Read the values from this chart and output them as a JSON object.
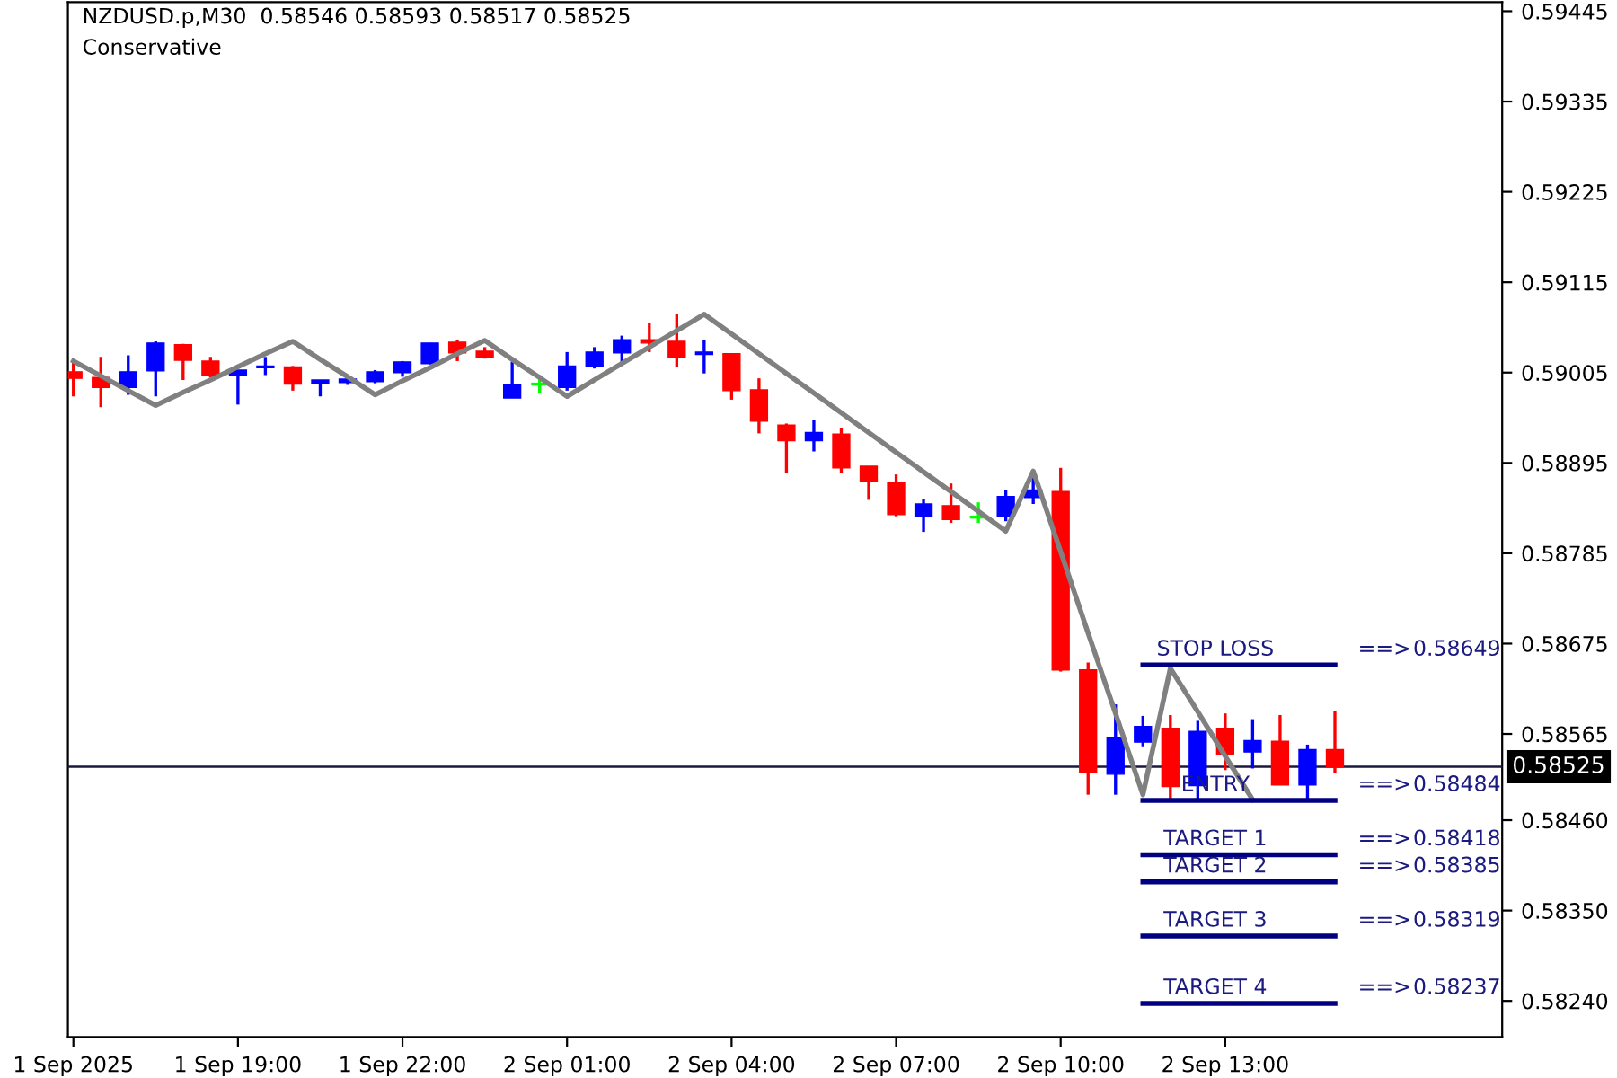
{
  "chart_data": {
    "type": "candlestick",
    "title": "NZDUSD.p,M30  0.58546 0.58593 0.58517 0.58525",
    "subtitle": "Conservative",
    "categories": [
      "1 Sep 2025",
      null,
      null,
      null,
      null,
      null,
      "1 Sep 19:00",
      null,
      null,
      null,
      null,
      null,
      "1 Sep 22:00",
      null,
      null,
      null,
      null,
      null,
      "2 Sep 01:00",
      null,
      null,
      null,
      null,
      null,
      "2 Sep 04:00",
      null,
      null,
      null,
      null,
      null,
      "2 Sep 07:00",
      null,
      null,
      null,
      null,
      null,
      "2 Sep 10:00",
      null,
      null,
      null,
      null,
      null,
      "2 Sep 13:00",
      null,
      null,
      null,
      null
    ],
    "ohlc": [
      [
        0.59006,
        0.59019,
        0.58976,
        0.58998
      ],
      [
        0.58999,
        0.59024,
        0.58963,
        0.58987
      ],
      [
        0.58987,
        0.59026,
        0.58978,
        0.59006
      ],
      [
        0.59007,
        0.59043,
        0.58976,
        0.59041
      ],
      [
        0.59039,
        0.5904,
        0.58996,
        0.5902
      ],
      [
        0.59019,
        0.59024,
        0.58999,
        0.59002
      ],
      [
        0.59002,
        0.59008,
        0.58966,
        0.59008
      ],
      [
        0.59011,
        0.59024,
        0.59002,
        0.59013
      ],
      [
        0.59012,
        0.59013,
        0.58983,
        0.58991
      ],
      [
        0.58992,
        0.58996,
        0.58976,
        0.58996
      ],
      [
        0.58993,
        0.58998,
        0.5899,
        0.58997
      ],
      [
        0.58994,
        0.59008,
        0.58992,
        0.59006
      ],
      [
        0.59005,
        0.59019,
        0.59,
        0.59018
      ],
      [
        0.59016,
        0.59041,
        0.59015,
        0.59041
      ],
      [
        0.59042,
        0.59045,
        0.59019,
        0.59029
      ],
      [
        0.59031,
        0.59036,
        0.59022,
        0.59024
      ],
      [
        0.58974,
        0.59018,
        0.58974,
        0.5899
      ],
      [
        0.58991,
        0.59002,
        0.5898,
        0.58991
      ],
      [
        0.58987,
        0.5903,
        0.58983,
        0.59013
      ],
      [
        0.59012,
        0.59036,
        0.5901,
        0.5903
      ],
      [
        0.59029,
        0.5905,
        0.59016,
        0.59045
      ],
      [
        0.59045,
        0.59065,
        0.5903,
        0.59041
      ],
      [
        0.59043,
        0.59076,
        0.59012,
        0.59024
      ],
      [
        0.59027,
        0.59045,
        0.59004,
        0.5903
      ],
      [
        0.59028,
        0.59028,
        0.58972,
        0.58983
      ],
      [
        0.58984,
        0.58998,
        0.58931,
        0.58946
      ],
      [
        0.58941,
        0.58943,
        0.58883,
        0.58922
      ],
      [
        0.58922,
        0.58947,
        0.58909,
        0.58932
      ],
      [
        0.5893,
        0.58938,
        0.58883,
        0.58889
      ],
      [
        0.58891,
        0.58891,
        0.5885,
        0.58872
      ],
      [
        0.58871,
        0.58881,
        0.5883,
        0.58832
      ],
      [
        0.5883,
        0.58851,
        0.58811,
        0.58845
      ],
      [
        0.58843,
        0.5887,
        0.58822,
        0.58826
      ],
      [
        0.58829,
        0.58847,
        0.58822,
        0.58829
      ],
      [
        0.5883,
        0.58862,
        0.58824,
        0.58854
      ],
      [
        0.58853,
        0.5888,
        0.58845,
        0.58862
      ],
      [
        0.5886,
        0.58889,
        0.58641,
        0.58643
      ],
      [
        0.58643,
        0.58652,
        0.58491,
        0.58518
      ],
      [
        0.58516,
        0.58601,
        0.58491,
        0.58561
      ],
      [
        0.58555,
        0.58587,
        0.5855,
        0.58574
      ],
      [
        0.58572,
        0.58588,
        0.58485,
        0.58501
      ],
      [
        0.58502,
        0.58581,
        0.58485,
        0.58568
      ],
      [
        0.58572,
        0.5859,
        0.58521,
        0.5854
      ],
      [
        0.58543,
        0.58583,
        0.58523,
        0.58557
      ],
      [
        0.58556,
        0.58588,
        0.58503,
        0.58503
      ],
      [
        0.58503,
        0.58552,
        0.58485,
        0.58546
      ],
      [
        0.58546,
        0.58593,
        0.58517,
        0.58525
      ]
    ],
    "colors": [
      "#ff0000",
      "#ff0000",
      "#0000ff",
      "#0000ff",
      "#ff0000",
      "#ff0000",
      "#0000ff",
      "#0000ff",
      "#ff0000",
      "#0000ff",
      "#0000ff",
      "#0000ff",
      "#0000ff",
      "#0000ff",
      "#ff0000",
      "#ff0000",
      "#0000ff",
      "#00ff00",
      "#0000ff",
      "#0000ff",
      "#0000ff",
      "#ff0000",
      "#ff0000",
      "#0000ff",
      "#ff0000",
      "#ff0000",
      "#ff0000",
      "#0000ff",
      "#ff0000",
      "#ff0000",
      "#ff0000",
      "#0000ff",
      "#ff0000",
      "#00ff00",
      "#0000ff",
      "#0000ff",
      "#ff0000",
      "#ff0000",
      "#0000ff",
      "#0000ff",
      "#ff0000",
      "#0000ff",
      "#ff0000",
      "#0000ff",
      "#ff0000",
      "#0000ff",
      "#ff0000"
    ],
    "series": [
      {
        "type": "line",
        "color": "#808080",
        "values": [
          0.59019,
          0.59001,
          0.58983,
          0.58965,
          0.58981,
          0.58996,
          0.59012,
          0.59028,
          0.59043,
          0.59021,
          0.59,
          0.58978,
          0.58995,
          0.59011,
          0.59028,
          0.59044,
          0.59021,
          0.58999,
          0.58976,
          0.58996,
          0.59016,
          0.59036,
          0.59056,
          0.59076,
          0.59052,
          0.59028,
          0.59004,
          0.5898,
          0.58956,
          0.58932,
          0.58908,
          0.58884,
          0.5886,
          0.58836,
          0.58812,
          0.58885,
          0.58787,
          0.58688,
          0.5859,
          0.58491,
          0.58645,
          0.58592,
          0.58538,
          0.58485,
          null,
          null,
          null
        ]
      },
      {
        "type": "line",
        "color": "#000080",
        "values": [
          null,
          null,
          null,
          null,
          null,
          null,
          null,
          null,
          null,
          null,
          null,
          null,
          null,
          null,
          null,
          null,
          null,
          null,
          null,
          null,
          null,
          null,
          null,
          null,
          null,
          null,
          null,
          null,
          null,
          null,
          null,
          null,
          null,
          null,
          null,
          null,
          null,
          null,
          null,
          0.58649,
          0.58649,
          0.58649,
          0.58649,
          0.58649,
          0.58649,
          0.58649,
          0.58649
        ]
      },
      {
        "type": "line",
        "color": "#000080",
        "values": [
          null,
          null,
          null,
          null,
          null,
          null,
          null,
          null,
          null,
          null,
          null,
          null,
          null,
          null,
          null,
          null,
          null,
          null,
          null,
          null,
          null,
          null,
          null,
          null,
          null,
          null,
          null,
          null,
          null,
          null,
          null,
          null,
          null,
          null,
          null,
          null,
          null,
          null,
          null,
          0.58484,
          0.58484,
          0.58484,
          0.58484,
          0.58484,
          0.58484,
          0.58484,
          0.58484
        ]
      },
      {
        "type": "line",
        "color": "#000080",
        "values": [
          null,
          null,
          null,
          null,
          null,
          null,
          null,
          null,
          null,
          null,
          null,
          null,
          null,
          null,
          null,
          null,
          null,
          null,
          null,
          null,
          null,
          null,
          null,
          null,
          null,
          null,
          null,
          null,
          null,
          null,
          null,
          null,
          null,
          null,
          null,
          null,
          null,
          null,
          null,
          0.58418,
          0.58418,
          0.58418,
          0.58418,
          0.58418,
          0.58418,
          0.58418,
          0.58418
        ]
      },
      {
        "type": "line",
        "color": "#000080",
        "values": [
          null,
          null,
          null,
          null,
          null,
          null,
          null,
          null,
          null,
          null,
          null,
          null,
          null,
          null,
          null,
          null,
          null,
          null,
          null,
          null,
          null,
          null,
          null,
          null,
          null,
          null,
          null,
          null,
          null,
          null,
          null,
          null,
          null,
          null,
          null,
          null,
          null,
          null,
          null,
          0.58385,
          0.58385,
          0.58385,
          0.58385,
          0.58385,
          0.58385,
          0.58385,
          0.58385
        ]
      },
      {
        "type": "line",
        "color": "#000080",
        "values": [
          null,
          null,
          null,
          null,
          null,
          null,
          null,
          null,
          null,
          null,
          null,
          null,
          null,
          null,
          null,
          null,
          null,
          null,
          null,
          null,
          null,
          null,
          null,
          null,
          null,
          null,
          null,
          null,
          null,
          null,
          null,
          null,
          null,
          null,
          null,
          null,
          null,
          null,
          null,
          0.58319,
          0.58319,
          0.58319,
          0.58319,
          0.58319,
          0.58319,
          0.58319,
          0.58319
        ]
      },
      {
        "type": "line",
        "color": "#000080",
        "values": [
          null,
          null,
          null,
          null,
          null,
          null,
          null,
          null,
          null,
          null,
          null,
          null,
          null,
          null,
          null,
          null,
          null,
          null,
          null,
          null,
          null,
          null,
          null,
          null,
          null,
          null,
          null,
          null,
          null,
          null,
          null,
          null,
          null,
          null,
          null,
          null,
          null,
          null,
          null,
          0.58237,
          0.58237,
          0.58237,
          0.58237,
          0.58237,
          0.58237,
          0.58237,
          0.58237
        ]
      }
    ],
    "ref_lines": [
      {
        "axis": "y",
        "value": 0.58525,
        "label": "0.58525",
        "color": "#1a1a40"
      }
    ],
    "annotations": [
      "STOP LOSS",
      "==>",
      "0.58649",
      "ENTRY",
      "==>",
      "0.58484",
      "TARGET 1",
      "==>",
      "0.58418",
      "TARGET 2",
      "==>",
      "0.58385",
      "TARGET 3",
      "==>",
      "0.58319",
      "TARGET 4",
      "==>",
      "0.58237"
    ],
    "ylim": [
      0.58196,
      0.59456
    ],
    "yticks": [
      0.59445,
      0.59335,
      0.59225,
      0.59115,
      0.59005,
      0.58895,
      0.58785,
      0.58675,
      0.58565,
      {
        "value": 0.5846,
        "label": "0.58460"
      },
      {
        "value": 0.5835,
        "label": "0.58350"
      },
      {
        "value": 0.5824,
        "label": "0.58240"
      }
    ],
    "grid": false,
    "legend": false
  }
}
